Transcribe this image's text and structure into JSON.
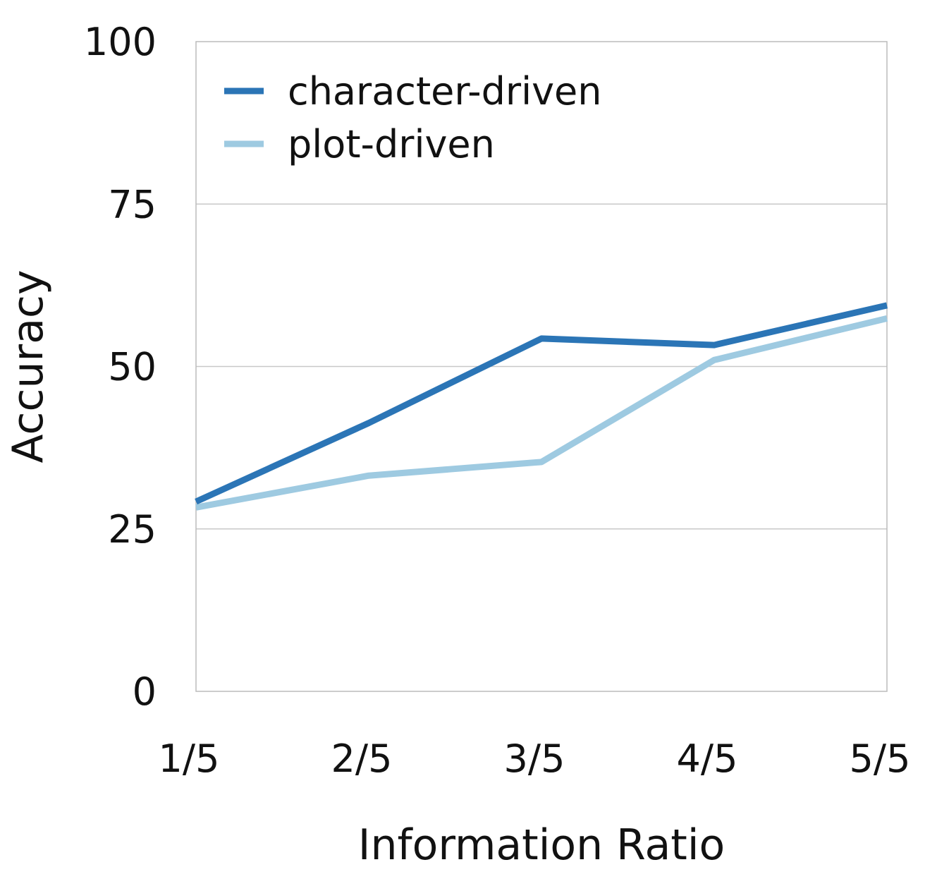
{
  "chart_data": {
    "type": "line",
    "title": "",
    "xlabel": "Information Ratio",
    "ylabel": "Accuracy",
    "categories": [
      "1/5",
      "2/5",
      "3/5",
      "4/5",
      "5/5"
    ],
    "ylim": [
      0,
      100
    ],
    "yticks": [
      0,
      25,
      50,
      75,
      100
    ],
    "grid": "horizontal",
    "legend_position": "top-left",
    "series": [
      {
        "name": "character-driven",
        "color": "#2b75b6",
        "values": [
          29.2,
          41.3,
          54.3,
          53.3,
          59.4
        ]
      },
      {
        "name": "plot-driven",
        "color": "#9ecae1",
        "values": [
          28.3,
          33.2,
          35.3,
          51.0,
          57.4
        ]
      }
    ]
  }
}
